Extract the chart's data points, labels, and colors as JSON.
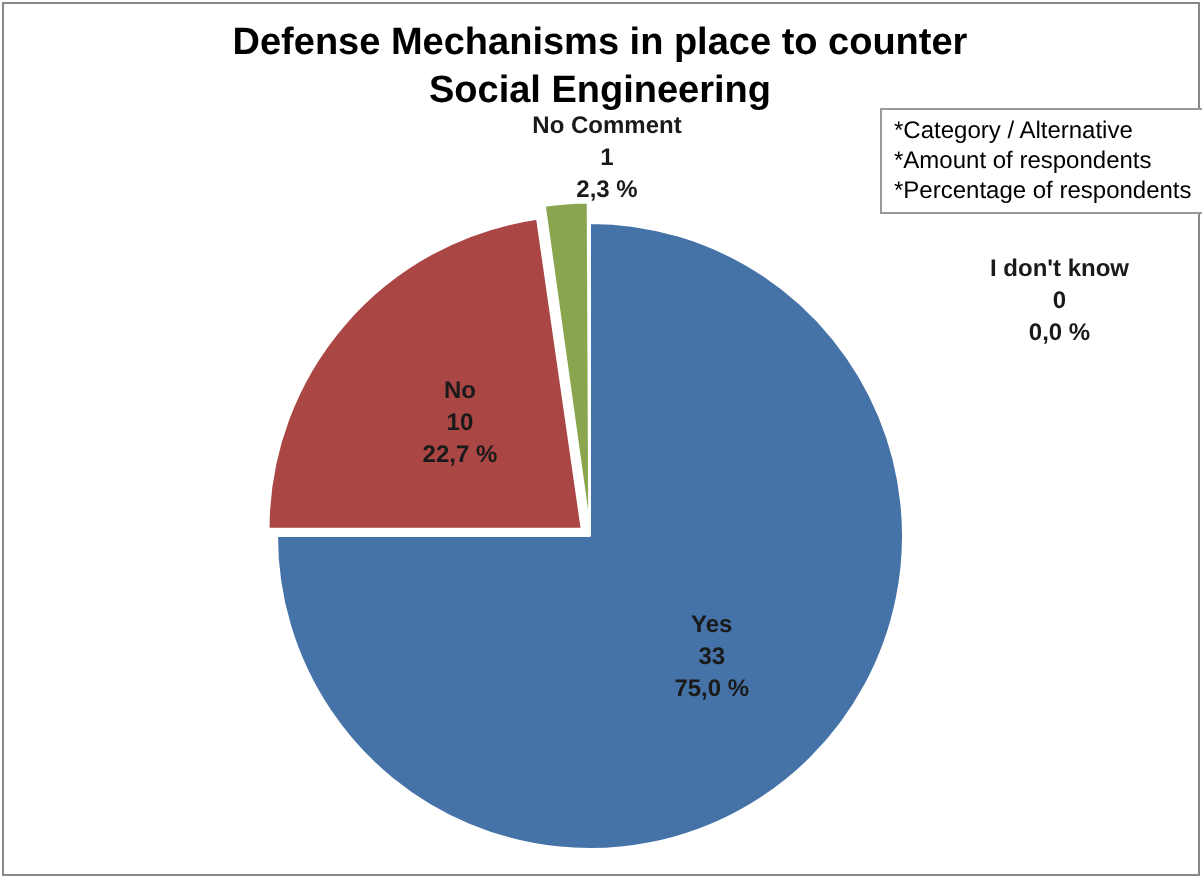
{
  "chart_data": {
    "type": "pie",
    "title": "Defense Mechanisms in place to counter Social Engineering",
    "categories": [
      "Yes",
      "No",
      "No Comment",
      "I don't know"
    ],
    "values": [
      33,
      10,
      1,
      0
    ],
    "colors": [
      "#4572a7",
      "#aa4643",
      "#89a54e",
      "#71588f"
    ],
    "value_labels": [
      "33\n75,0 %",
      "10\n22,7 %",
      "1\n2,3 %",
      "0\n0,0 %"
    ],
    "legend": false,
    "annotations": [
      "*Category / Alternative\n*Amount of respondents\n*Percentage of respondents"
    ]
  }
}
